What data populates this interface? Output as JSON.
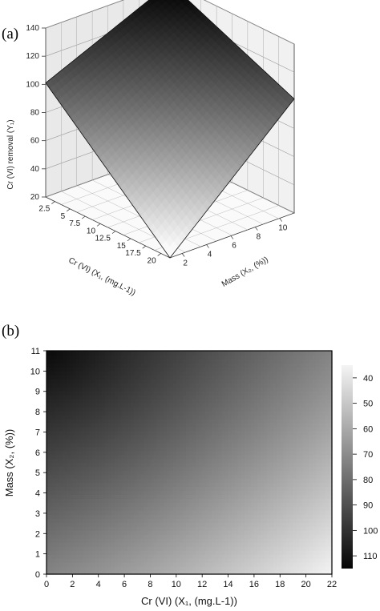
{
  "chart_data": [
    {
      "panel": "(a)",
      "type": "surface3d",
      "z_label": "Cr (VI) removal (Y₁)",
      "z_ticks": [
        20,
        40,
        60,
        80,
        100,
        120,
        140
      ],
      "x_label": "Cr (VI) (X₁, (mg.L-1))",
      "x_ticks": [
        "2.5",
        "5",
        "7.5",
        "10",
        "12.5",
        "15",
        "17.5",
        "20"
      ],
      "y_label": "Mass (X₂, (%))",
      "y_ticks": [
        "2",
        "4",
        "6",
        "8",
        "10"
      ],
      "zlim": [
        20,
        140
      ],
      "corners": {
        "low_cr_high_mass": 140,
        "high_cr_low_mass": 20,
        "low_cr_low_mass": 101,
        "high_cr_high_mass": 101
      }
    },
    {
      "panel": "(b)",
      "type": "heatmap",
      "x_label": "Cr (VI) (X₁, (mg.L-1))",
      "y_label": "Mass (X₂, (%))",
      "xlim": [
        0,
        22
      ],
      "ylim": [
        0,
        11
      ],
      "x_ticks": [
        "0",
        "2",
        "4",
        "6",
        "8",
        "10",
        "12",
        "14",
        "16",
        "18",
        "20",
        "22"
      ],
      "y_ticks": [
        "0",
        "1",
        "2",
        "3",
        "4",
        "5",
        "6",
        "7",
        "8",
        "9",
        "10",
        "11"
      ],
      "colorbar_ticks": [
        "40",
        "50",
        "60",
        "70",
        "80",
        "90",
        "100",
        "110"
      ],
      "colorbar_range": [
        35,
        115
      ],
      "colormap": [
        "#000000",
        "#ffffff"
      ],
      "corners": {
        "x0_y11": 112,
        "x22_y0": 37,
        "x0_y0": 84,
        "x22_y11": 84
      }
    }
  ]
}
